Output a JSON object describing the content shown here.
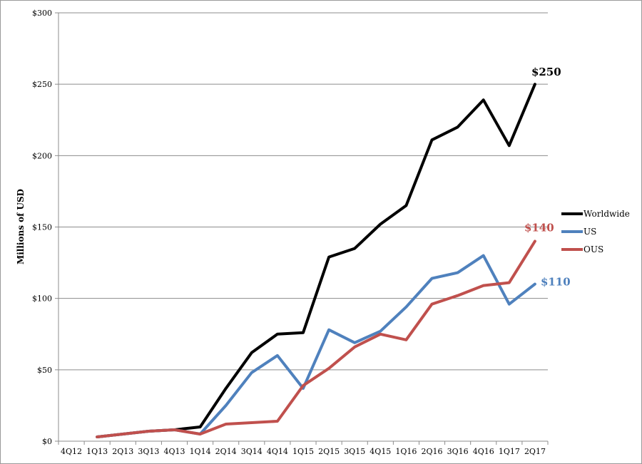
{
  "chart_data": {
    "type": "line",
    "title": "",
    "xlabel": "",
    "ylabel": "Millions of USD",
    "categories": [
      "4Q12",
      "1Q13",
      "2Q13",
      "3Q13",
      "4Q13",
      "1Q14",
      "2Q14",
      "3Q14",
      "4Q14",
      "1Q15",
      "2Q15",
      "3Q15",
      "4Q15",
      "1Q16",
      "2Q16",
      "3Q16",
      "4Q16",
      "1Q17",
      "2Q17"
    ],
    "ylim": [
      0,
      300
    ],
    "yticks": [
      0,
      50,
      100,
      150,
      200,
      250,
      300
    ],
    "ytick_labels": [
      "$0",
      "$50",
      "$100",
      "$150",
      "$200",
      "$250",
      "$300"
    ],
    "grid": "horizontal",
    "legend_position": "right",
    "series": [
      {
        "name": "Worldwide",
        "color": "#000000",
        "values": [
          null,
          3,
          5,
          7,
          8,
          10,
          37,
          62,
          75,
          76,
          129,
          135,
          152,
          165,
          211,
          220,
          239,
          207,
          250
        ],
        "end_label": "$250"
      },
      {
        "name": "US",
        "color": "#4f81bd",
        "values": [
          null,
          3,
          5,
          7,
          8,
          5,
          25,
          48,
          60,
          37,
          78,
          69,
          77,
          94,
          114,
          118,
          130,
          96,
          110
        ],
        "end_label": "$110"
      },
      {
        "name": "OUS",
        "color": "#c0504d",
        "values": [
          null,
          3,
          5,
          7,
          8,
          5,
          12,
          13,
          14,
          39,
          51,
          66,
          75,
          71,
          96,
          102,
          109,
          111,
          140
        ],
        "end_label": "$140"
      }
    ]
  }
}
